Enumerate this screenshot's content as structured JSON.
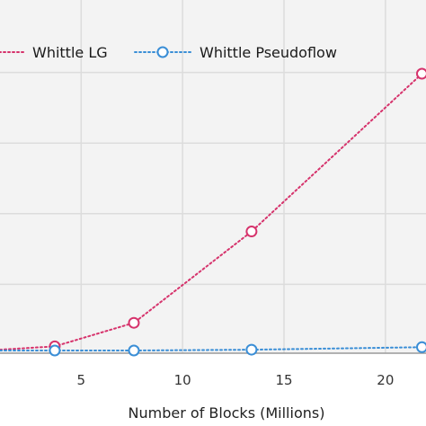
{
  "chart_data": {
    "type": "line",
    "title": "",
    "xlabel": "Number of Blocks (Millions)",
    "ylabel": "",
    "xlim": [
      1,
      22
    ],
    "ylim": [
      0,
      1
    ],
    "x_ticks": [
      5,
      10,
      15,
      20
    ],
    "grid": true,
    "legend_position": "top",
    "series": [
      {
        "name": "Whittle LG",
        "color": "#d6336c",
        "line_style": "dotted",
        "marker": "open-circle",
        "x": [
          3.7,
          7.6,
          13.4,
          21.8
        ],
        "y": [
          0.015,
          0.1,
          0.43,
          1.0
        ]
      },
      {
        "name": "Whittle Pseudoflow",
        "color": "#3a8ed6",
        "line_style": "dotted",
        "marker": "open-circle",
        "x": [
          3.7,
          7.6,
          13.4,
          21.8
        ],
        "y": [
          0.0,
          0.0,
          0.003,
          0.012
        ]
      }
    ]
  }
}
